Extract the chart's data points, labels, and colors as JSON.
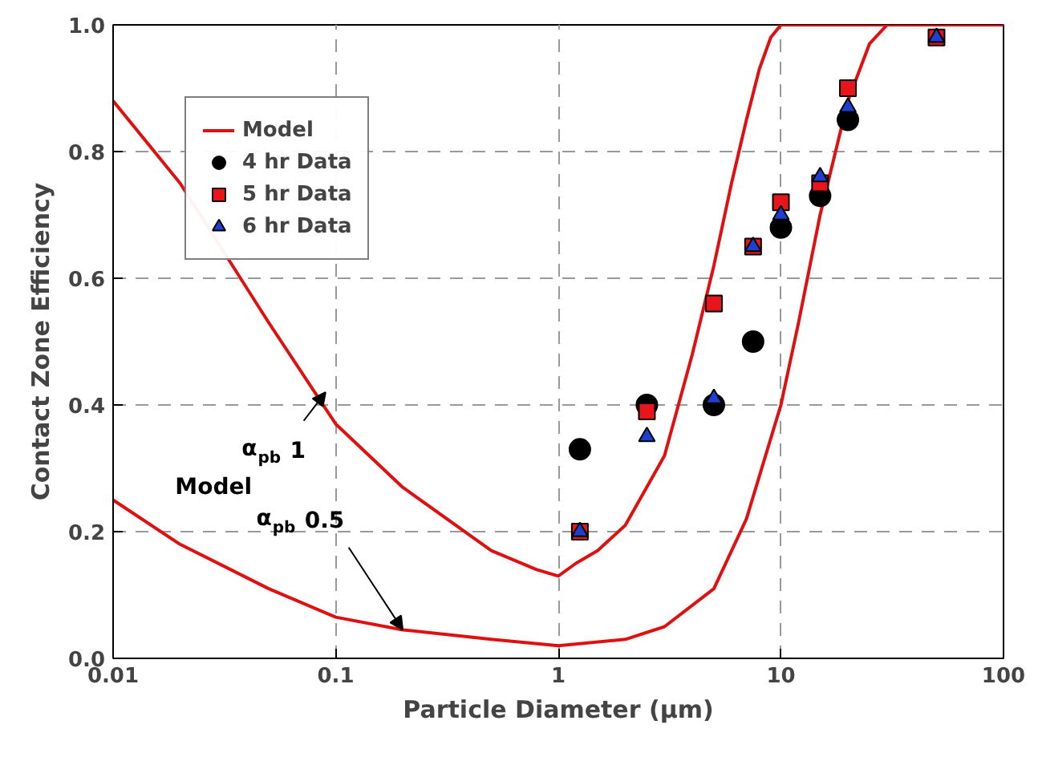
{
  "chart_data": {
    "type": "line",
    "xlabel": "Particle Diameter (µm)",
    "ylabel": "Contact Zone Efficiency",
    "log": "x",
    "xlim": [
      0.01,
      100
    ],
    "ylim": [
      0,
      1
    ],
    "xticks": [
      0.01,
      0.1,
      1,
      10,
      100
    ],
    "yticks": [
      {
        "value": 0,
        "label": "0.0"
      },
      {
        "value": 0.2,
        "label": "0.2"
      },
      {
        "value": 0.4,
        "label": "0.4"
      },
      {
        "value": 0.6,
        "label": "0.6"
      },
      {
        "value": 0.8,
        "label": "0.8"
      },
      {
        "value": 1,
        "label": "1.0"
      }
    ],
    "grid": true,
    "legend": "top left",
    "series": [
      {
        "name": "Model",
        "color": "#e01010",
        "marker": "none",
        "x": [
          0.01,
          0.02,
          0.05,
          0.1,
          0.2,
          0.5,
          0.8,
          1,
          1.2,
          1.5,
          2,
          3,
          4,
          5,
          6,
          7,
          8,
          9,
          10,
          100
        ],
        "values": [
          0.88,
          0.75,
          0.53,
          0.37,
          0.27,
          0.17,
          0.14,
          0.13,
          0.15,
          0.17,
          0.21,
          0.32,
          0.48,
          0.62,
          0.75,
          0.85,
          0.93,
          0.98,
          1.0,
          1.0
        ]
      },
      {
        "color": "#e01010",
        "marker": "none",
        "x": [
          0.01,
          0.02,
          0.05,
          0.1,
          0.2,
          0.5,
          1,
          2,
          3,
          5,
          7,
          10,
          12,
          15,
          20,
          25,
          30,
          100
        ],
        "values": [
          0.25,
          0.18,
          0.11,
          0.065,
          0.045,
          0.03,
          0.02,
          0.03,
          0.05,
          0.11,
          0.22,
          0.4,
          0.53,
          0.7,
          0.88,
          0.97,
          1.0,
          1.0
        ]
      },
      {
        "name": "4 hr Data",
        "type": "scatter",
        "color": "#000000",
        "marker": "circle",
        "x": [
          1.25,
          2.5,
          5,
          7.5,
          10,
          15,
          20
        ],
        "values": [
          0.33,
          0.4,
          0.4,
          0.5,
          0.68,
          0.73,
          0.85
        ]
      },
      {
        "name": "5 hr Data",
        "type": "scatter",
        "color": "#e8161b",
        "marker": "square",
        "x": [
          1.25,
          2.5,
          5,
          7.5,
          10,
          15,
          20,
          50
        ],
        "values": [
          0.2,
          0.39,
          0.56,
          0.65,
          0.72,
          0.75,
          0.9,
          0.98
        ]
      },
      {
        "name": "6 hr Data",
        "type": "scatter",
        "color": "#1f3fd0",
        "marker": "triangle",
        "x": [
          1.25,
          2.5,
          5,
          7.5,
          10,
          15,
          20,
          50
        ],
        "values": [
          0.2,
          0.35,
          0.41,
          0.65,
          0.7,
          0.76,
          0.87,
          0.98
        ]
      }
    ],
    "annotations": [
      "Model",
      {
        "text": "α$_{pb}$ 1",
        "x": 0.09,
        "y": 0.42
      },
      {
        "text": "α$_{pb}$ 0.5",
        "x": 0.2,
        "y": 0.045
      }
    ]
  }
}
